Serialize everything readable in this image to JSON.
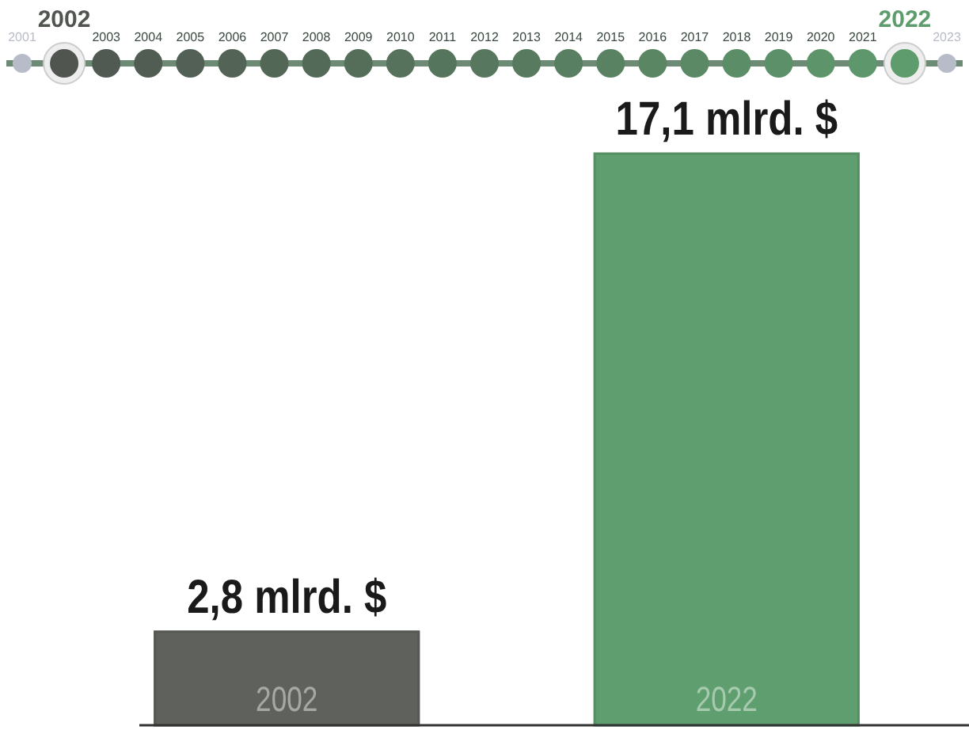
{
  "chart_data": {
    "type": "bar",
    "categories": [
      "2002",
      "2022"
    ],
    "values": [
      2.8,
      17.1
    ],
    "colors": [
      "#5f625c",
      "#5f9e6e"
    ],
    "value_labels": [
      "2,8 mlrd. $",
      "17,1 mlrd. $"
    ],
    "annotations": [
      "2001",
      "2002",
      "2003",
      "2004",
      "2005",
      "2006",
      "2007",
      "2008",
      "2009",
      "2010",
      "2011",
      "2012",
      "2013",
      "2014",
      "2015",
      "2016",
      "2017",
      "2018",
      "2019",
      "2020",
      "2021",
      "2022",
      "2023"
    ]
  }
}
